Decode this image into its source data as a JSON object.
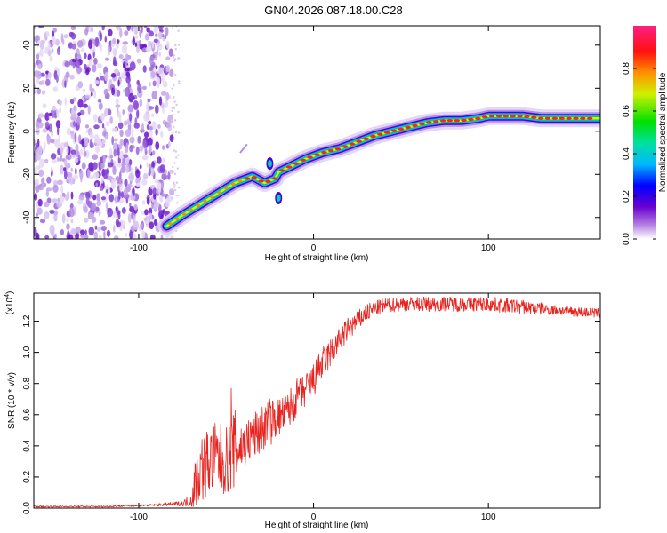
{
  "title": "GN04.2026.087.18.00.C28",
  "chart_data": [
    {
      "type": "heatmap",
      "title": "GN04.2026.087.18.00.C28",
      "xlabel": "Height of straight line (km)",
      "ylabel": "Frequency (Hz)",
      "xlim": [
        -160,
        164
      ],
      "ylim": [
        -50,
        49
      ],
      "xticks": [
        -100,
        0,
        100
      ],
      "yticks": [
        -40,
        -20,
        0,
        20,
        40
      ],
      "colorbar": {
        "label": "Normalized spectral amplitude",
        "range": [
          0.0,
          1.0
        ],
        "ticks": [
          "0.0",
          "0.2",
          "0.4",
          "0.6",
          "0.8"
        ]
      },
      "noise_region_x": [
        -160,
        -81
      ],
      "ridge": {
        "x": [
          -84,
          -75,
          -65,
          -55,
          -45,
          -35,
          -28,
          -22,
          -20,
          -15,
          -5,
          5,
          15,
          25,
          35,
          45,
          55,
          65,
          75,
          85,
          95,
          100,
          110,
          120,
          130,
          140,
          150,
          164
        ],
        "freq": [
          -44,
          -39,
          -34,
          -29,
          -24,
          -21,
          -24,
          -22,
          -19,
          -17,
          -13,
          -10,
          -8,
          -5,
          -2,
          0,
          2,
          4,
          5,
          5,
          6,
          7,
          7,
          7,
          6,
          6,
          6,
          6
        ],
        "spurs": [
          {
            "x": -25,
            "freq": -15
          },
          {
            "x": -20,
            "freq": -31
          }
        ]
      }
    },
    {
      "type": "line",
      "xlabel": "Height of straight line (km)",
      "ylabel": "SNR (10 * v/v)",
      "y_scale_label": "(x10",
      "y_scale_exp": "4",
      "y_scale_close": ")",
      "xlim": [
        -160,
        164
      ],
      "ylim": [
        0,
        1.38
      ],
      "xticks": [
        -100,
        0,
        100
      ],
      "yticks": [
        "0.0",
        "0.2",
        "0.4",
        "0.6",
        "0.8",
        "1.0",
        "1.2"
      ],
      "color": "#e8231e",
      "series": [
        {
          "name": "SNR",
          "x": [
            -160,
            -120,
            -90,
            -75,
            -70,
            -68,
            -65,
            -60,
            -55,
            -50,
            -45,
            -40,
            -35,
            -30,
            -25,
            -20,
            -15,
            -10,
            -5,
            0,
            5,
            10,
            15,
            20,
            25,
            30,
            35,
            40,
            50,
            60,
            80,
            100,
            120,
            140,
            164
          ],
          "values": [
            0.01,
            0.01,
            0.02,
            0.03,
            0.05,
            0.15,
            0.25,
            0.3,
            0.32,
            0.3,
            0.38,
            0.4,
            0.45,
            0.5,
            0.55,
            0.58,
            0.62,
            0.7,
            0.75,
            0.82,
            0.92,
            1.0,
            1.08,
            1.15,
            1.2,
            1.25,
            1.28,
            1.3,
            1.31,
            1.31,
            1.31,
            1.31,
            1.29,
            1.27,
            1.25
          ],
          "noise": [
            0.003,
            0.003,
            0.005,
            0.01,
            0.03,
            0.1,
            0.14,
            0.14,
            0.15,
            0.14,
            0.16,
            0.1,
            0.1,
            0.1,
            0.1,
            0.08,
            0.08,
            0.08,
            0.07,
            0.07,
            0.07,
            0.06,
            0.05,
            0.05,
            0.04,
            0.04,
            0.03,
            0.03,
            0.03,
            0.03,
            0.03,
            0.03,
            0.03,
            0.02,
            0.02
          ],
          "spikes": [
            {
              "x": -57,
              "y": 0.52
            },
            {
              "x": -47,
              "y": 0.77
            },
            {
              "x": -36,
              "y": 0.55
            },
            {
              "x": -17,
              "y": 0.66
            },
            {
              "x": -8,
              "y": 0.79
            },
            {
              "x": 3,
              "y": 0.99
            }
          ]
        }
      ]
    }
  ]
}
